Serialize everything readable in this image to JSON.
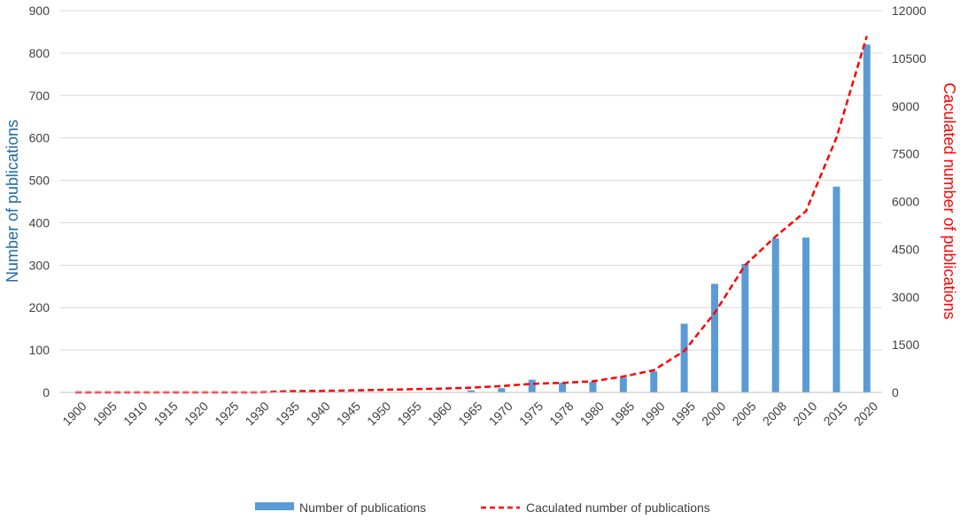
{
  "chart_data": {
    "type": "bar",
    "categories": [
      "1900",
      "1905",
      "1910",
      "1915",
      "1920",
      "1925",
      "1930",
      "1935",
      "1940",
      "1945",
      "1950",
      "1955",
      "1960",
      "1965",
      "1970",
      "1975",
      "1978",
      "1980",
      "1985",
      "1990",
      "1995",
      "2000",
      "2005",
      "2008",
      "2010",
      "2015",
      "2020"
    ],
    "series": [
      {
        "name": "Number of publications",
        "type": "bar",
        "axis": "left",
        "color": "#5b9bd5",
        "values": [
          0,
          0,
          0,
          0,
          0,
          0,
          0,
          0,
          0,
          0,
          0,
          0,
          0,
          5,
          10,
          30,
          23,
          25,
          35,
          50,
          162,
          256,
          303,
          363,
          365,
          485,
          820
        ]
      },
      {
        "name": "Caculated number of publications",
        "type": "line",
        "style": "dashed",
        "axis": "right",
        "color": "#ff0000",
        "values": [
          0,
          0,
          0,
          0,
          0,
          0,
          0,
          40,
          50,
          60,
          80,
          100,
          120,
          150,
          200,
          270,
          300,
          350,
          500,
          700,
          1300,
          2500,
          4000,
          4900,
          5700,
          8000,
          11200
        ]
      }
    ],
    "ylabel": "Number of publications",
    "y2label": "Caculated number of publications",
    "ylim": [
      0,
      900
    ],
    "y2lim": [
      0,
      12000
    ],
    "yticks": [
      "0",
      "100",
      "200",
      "300",
      "400",
      "500",
      "600",
      "700",
      "800",
      "900"
    ],
    "y2ticks": [
      "0",
      "1500",
      "3000",
      "4500",
      "6000",
      "7500",
      "9000",
      "10500",
      "12000"
    ],
    "grid": true,
    "legend": "bottom",
    "ylabel_color": "#1f6aa5",
    "y2label_color": "#ff0000"
  }
}
